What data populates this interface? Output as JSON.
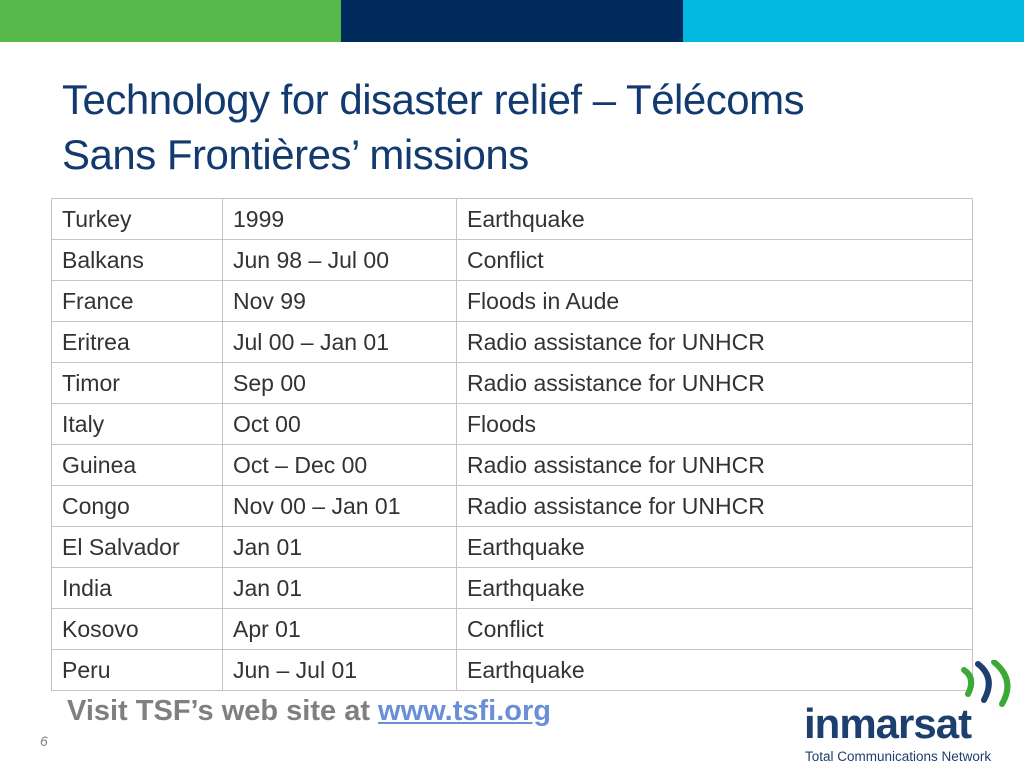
{
  "colors": {
    "bar_green": "#55b848",
    "bar_navy": "#002a5c",
    "bar_cyan": "#00b8e0",
    "title": "#123a6e",
    "link": "#6a8fd6",
    "logo_green": "#3aa935",
    "logo_navy": "#1d3f6e"
  },
  "slide": {
    "title_line1": "Technology for disaster relief – Télécoms",
    "title_line2": "Sans Frontières’ missions",
    "page_number": "6"
  },
  "table": {
    "rows": [
      [
        "Turkey",
        "1999",
        "Earthquake"
      ],
      [
        "Balkans",
        "Jun 98 – Jul 00",
        "Conflict"
      ],
      [
        "France",
        "Nov 99",
        "Floods in Aude"
      ],
      [
        "Eritrea",
        "Jul 00 – Jan 01",
        "Radio assistance for UNHCR"
      ],
      [
        "Timor",
        "Sep 00",
        "Radio assistance for UNHCR"
      ],
      [
        "Italy",
        "Oct 00",
        "Floods"
      ],
      [
        "Guinea",
        "Oct – Dec 00",
        "Radio assistance for UNHCR"
      ],
      [
        "Congo",
        "Nov 00 – Jan 01",
        "Radio assistance for UNHCR"
      ],
      [
        "El Salvador",
        "Jan 01",
        "Earthquake"
      ],
      [
        "India",
        "Jan 01",
        "Earthquake"
      ],
      [
        "Kosovo",
        "Apr 01",
        "Conflict"
      ],
      [
        "Peru",
        "Jun – Jul 01",
        "Earthquake"
      ]
    ]
  },
  "footer": {
    "visit_text": "Visit TSF’s web site at ",
    "link_text": "www.tsfi.org"
  },
  "logo": {
    "brand": "inmarsat",
    "tagline": "Total Communications Network",
    "icon": "signal-arcs-icon"
  }
}
